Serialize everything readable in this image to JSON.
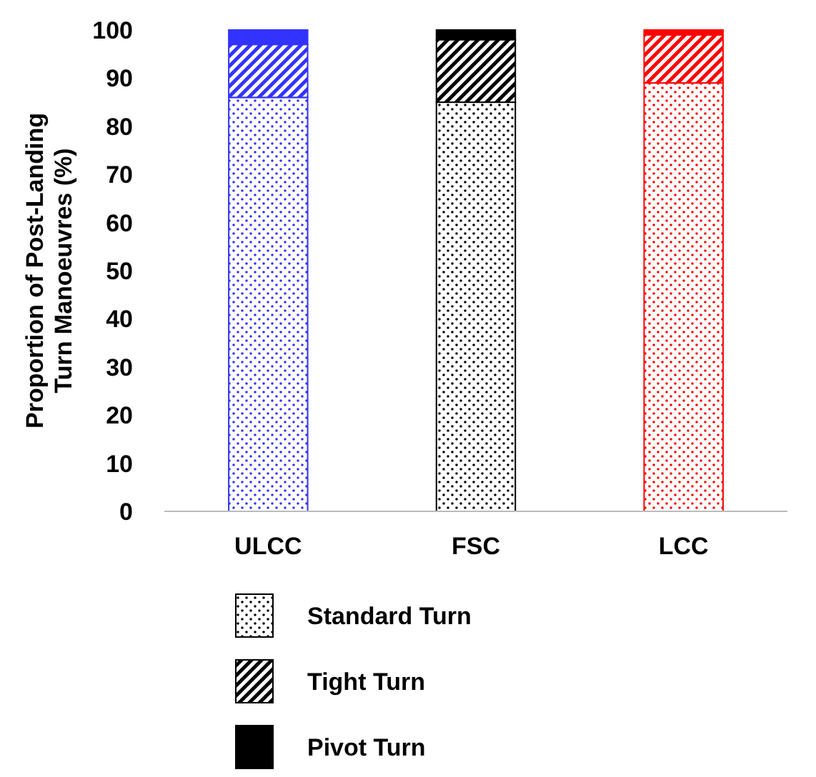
{
  "chart_data": {
    "type": "bar",
    "stacked": true,
    "ylabel": "Proportion of Post-Landing Turn Manoeuvres (%)",
    "categories": [
      "ULCC",
      "FSC",
      "LCC"
    ],
    "series": [
      {
        "name": "Standard Turn",
        "color": "#000000",
        "colors": [
          "#3333ff",
          "#000000",
          "#ff0000"
        ],
        "values": [
          86,
          85,
          89
        ]
      },
      {
        "name": "Tight Turn",
        "color": "#000000",
        "colors": [
          "#3333ff",
          "#000000",
          "#ff0000"
        ],
        "values": [
          11,
          13,
          10
        ]
      },
      {
        "name": "Pivot Turn",
        "color": "#000000",
        "colors": [
          "#3333ff",
          "#000000",
          "#ff0000"
        ],
        "values": [
          3,
          2,
          1
        ]
      }
    ],
    "ylim": [
      0,
      100
    ],
    "yticks": [
      0,
      10,
      20,
      30,
      40,
      50,
      60,
      70,
      80,
      90,
      100
    ],
    "grid": false,
    "legend": "bottom"
  }
}
